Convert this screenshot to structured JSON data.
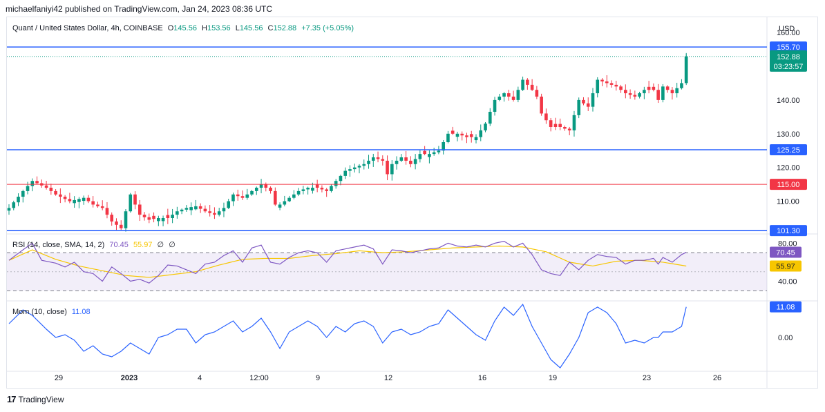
{
  "publisher": "michaelfaniyi42 published on TradingView.com, Jan 24, 2023 08:36 UTC",
  "brand": {
    "logo": "17",
    "name": "TradingView"
  },
  "header": {
    "symbol": "Quant / United States Dollar, 4h, COINBASE",
    "open_label": "O",
    "open": "145.56",
    "high_label": "H",
    "high": "153.56",
    "low_label": "L",
    "low": "145.56",
    "close_label": "C",
    "close": "152.88",
    "change": "+7.35 (+5.05%)"
  },
  "colors": {
    "up": "#089981",
    "down": "#f23645",
    "blue_line": "#2962ff",
    "red_line": "#f23645",
    "rsi": "#7e57c2",
    "rsi_sma": "#f7c600",
    "mom": "#2962ff",
    "price_tag": "#089981"
  },
  "chart_data": [
    {
      "type": "candlestick",
      "currency": "USD",
      "ylim": [
        100.5,
        163.5
      ],
      "y_ticks": [
        "160.00",
        "140.00",
        "130.00",
        "120.00",
        "110.00"
      ],
      "x_ticks": [
        "29",
        "2023",
        "4",
        "12:00",
        "9",
        "12",
        "16",
        "19",
        "23",
        "26"
      ],
      "horizontal_lines": [
        {
          "value": 155.7,
          "label": "155.70",
          "color": "#2962ff"
        },
        {
          "value": 125.25,
          "label": "125.25",
          "color": "#2962ff"
        },
        {
          "value": 115.0,
          "label": "115.00",
          "color": "#f23645"
        },
        {
          "value": 101.3,
          "label": "101.30",
          "color": "#2962ff"
        }
      ],
      "last_price": {
        "value": 152.88,
        "label": "152.88",
        "countdown": "03:23:57"
      },
      "close_anchors": [
        [
          0,
          108
        ],
        [
          3,
          113
        ],
        [
          5,
          116
        ],
        [
          8,
          114
        ],
        [
          10,
          112
        ],
        [
          13,
          110
        ],
        [
          16,
          111
        ],
        [
          18,
          109
        ],
        [
          20,
          108
        ],
        [
          22,
          104
        ],
        [
          24,
          102
        ],
        [
          26,
          112
        ],
        [
          28,
          106
        ],
        [
          30,
          104.5
        ],
        [
          32,
          105
        ],
        [
          34,
          105
        ],
        [
          36,
          107
        ],
        [
          38,
          108
        ],
        [
          40,
          108.5
        ],
        [
          42,
          107
        ],
        [
          44,
          106
        ],
        [
          46,
          108
        ],
        [
          48,
          112
        ],
        [
          50,
          111
        ],
        [
          52,
          113
        ],
        [
          54,
          115
        ],
        [
          56,
          113
        ],
        [
          57,
          109
        ],
        [
          58,
          109
        ],
        [
          60,
          111
        ],
        [
          62,
          113
        ],
        [
          64,
          114
        ],
        [
          66,
          114
        ],
        [
          68,
          113
        ],
        [
          70,
          116
        ],
        [
          72,
          119
        ],
        [
          74,
          120
        ],
        [
          76,
          121
        ],
        [
          78,
          123
        ],
        [
          80,
          122
        ],
        [
          81,
          118
        ],
        [
          82,
          121
        ],
        [
          84,
          123
        ],
        [
          86,
          121
        ],
        [
          88,
          124
        ],
        [
          90,
          124
        ],
        [
          92,
          125
        ],
        [
          94,
          130
        ],
        [
          96,
          130
        ],
        [
          98,
          129
        ],
        [
          100,
          129
        ],
        [
          102,
          133
        ],
        [
          104,
          140
        ],
        [
          106,
          142
        ],
        [
          108,
          140
        ],
        [
          110,
          146
        ],
        [
          112,
          143
        ],
        [
          113,
          141
        ],
        [
          114,
          136
        ],
        [
          116,
          132
        ],
        [
          118,
          132
        ],
        [
          120,
          131
        ],
        [
          122,
          140
        ],
        [
          124,
          138
        ],
        [
          126,
          146
        ],
        [
          128,
          145
        ],
        [
          130,
          144
        ],
        [
          132,
          142
        ],
        [
          134,
          141
        ],
        [
          136,
          143
        ],
        [
          138,
          143
        ],
        [
          139,
          140
        ],
        [
          140,
          144
        ],
        [
          142,
          142
        ],
        [
          144,
          145
        ],
        [
          145,
          152.88
        ]
      ],
      "total_candles": 146
    },
    {
      "type": "line",
      "name": "RSI",
      "legend": "RSI (14, close, SMA, 14, 2)",
      "legend_values": [
        "70.45",
        "55.97",
        "∅",
        "∅"
      ],
      "ylim": [
        20,
        89
      ],
      "y_ticks": [
        "80.00",
        "40.00"
      ],
      "levels": [
        70,
        50,
        30
      ],
      "rsi_anchors": [
        [
          0,
          62
        ],
        [
          3,
          73
        ],
        [
          5,
          80
        ],
        [
          7,
          62
        ],
        [
          10,
          59
        ],
        [
          12,
          55
        ],
        [
          14,
          60
        ],
        [
          16,
          50
        ],
        [
          18,
          48
        ],
        [
          20,
          40
        ],
        [
          22,
          55
        ],
        [
          24,
          48
        ],
        [
          26,
          40
        ],
        [
          28,
          42
        ],
        [
          30,
          38
        ],
        [
          32,
          46
        ],
        [
          34,
          57
        ],
        [
          36,
          56
        ],
        [
          38,
          52
        ],
        [
          40,
          48
        ],
        [
          42,
          58
        ],
        [
          44,
          60
        ],
        [
          46,
          67
        ],
        [
          48,
          72
        ],
        [
          50,
          60
        ],
        [
          52,
          75
        ],
        [
          54,
          78
        ],
        [
          56,
          60
        ],
        [
          58,
          58
        ],
        [
          60,
          65
        ],
        [
          62,
          70
        ],
        [
          64,
          72
        ],
        [
          66,
          70
        ],
        [
          68,
          60
        ],
        [
          70,
          72
        ],
        [
          72,
          74
        ],
        [
          74,
          76
        ],
        [
          76,
          78
        ],
        [
          78,
          74
        ],
        [
          80,
          58
        ],
        [
          82,
          73
        ],
        [
          84,
          72
        ],
        [
          86,
          70
        ],
        [
          88,
          72
        ],
        [
          90,
          74
        ],
        [
          92,
          75
        ],
        [
          94,
          80
        ],
        [
          96,
          77
        ],
        [
          98,
          76
        ],
        [
          100,
          78
        ],
        [
          102,
          76
        ],
        [
          104,
          80
        ],
        [
          106,
          82
        ],
        [
          108,
          76
        ],
        [
          110,
          80
        ],
        [
          112,
          68
        ],
        [
          114,
          52
        ],
        [
          116,
          48
        ],
        [
          118,
          46
        ],
        [
          120,
          60
        ],
        [
          122,
          52
        ],
        [
          124,
          62
        ],
        [
          126,
          68
        ],
        [
          128,
          66
        ],
        [
          130,
          65
        ],
        [
          132,
          58
        ],
        [
          134,
          62
        ],
        [
          136,
          62
        ],
        [
          138,
          64
        ],
        [
          139,
          58
        ],
        [
          140,
          65
        ],
        [
          142,
          60
        ],
        [
          144,
          68
        ],
        [
          145,
          70.45
        ]
      ],
      "sma_anchors": [
        [
          0,
          62
        ],
        [
          5,
          73
        ],
        [
          10,
          63
        ],
        [
          15,
          56
        ],
        [
          20,
          51
        ],
        [
          25,
          46
        ],
        [
          30,
          44
        ],
        [
          35,
          47
        ],
        [
          40,
          50
        ],
        [
          45,
          57
        ],
        [
          50,
          63
        ],
        [
          55,
          64
        ],
        [
          60,
          64
        ],
        [
          65,
          67
        ],
        [
          70,
          69
        ],
        [
          75,
          72
        ],
        [
          80,
          70
        ],
        [
          85,
          71
        ],
        [
          90,
          73
        ],
        [
          95,
          75
        ],
        [
          100,
          76
        ],
        [
          105,
          77
        ],
        [
          110,
          76
        ],
        [
          115,
          71
        ],
        [
          120,
          60
        ],
        [
          125,
          56
        ],
        [
          130,
          61
        ],
        [
          135,
          62
        ],
        [
          140,
          60
        ],
        [
          145,
          55.97
        ]
      ],
      "rsi_value": "70.45",
      "sma_value": "55.97"
    },
    {
      "type": "line",
      "name": "Mom",
      "legend": "Mom (10, close)",
      "legend_value": "11.08",
      "ylim": [
        -12,
        13
      ],
      "y_ticks": [
        "0.00"
      ],
      "mom_anchors": [
        [
          0,
          5
        ],
        [
          3,
          10
        ],
        [
          5,
          8
        ],
        [
          8,
          3
        ],
        [
          10,
          0
        ],
        [
          12,
          1
        ],
        [
          14,
          -1
        ],
        [
          16,
          -5
        ],
        [
          18,
          -3
        ],
        [
          20,
          -6
        ],
        [
          22,
          -7
        ],
        [
          24,
          -5
        ],
        [
          26,
          -2
        ],
        [
          28,
          -4
        ],
        [
          30,
          -6
        ],
        [
          32,
          0
        ],
        [
          34,
          1
        ],
        [
          36,
          3
        ],
        [
          38,
          3
        ],
        [
          40,
          -2
        ],
        [
          42,
          1
        ],
        [
          44,
          2
        ],
        [
          46,
          4
        ],
        [
          48,
          6
        ],
        [
          50,
          2
        ],
        [
          52,
          4
        ],
        [
          54,
          7
        ],
        [
          56,
          2
        ],
        [
          58,
          -4
        ],
        [
          60,
          2
        ],
        [
          62,
          4
        ],
        [
          64,
          6
        ],
        [
          66,
          4
        ],
        [
          68,
          0
        ],
        [
          70,
          4
        ],
        [
          72,
          2
        ],
        [
          74,
          5
        ],
        [
          76,
          6
        ],
        [
          78,
          4
        ],
        [
          80,
          -2
        ],
        [
          82,
          2
        ],
        [
          84,
          3
        ],
        [
          86,
          1
        ],
        [
          88,
          2
        ],
        [
          90,
          4
        ],
        [
          92,
          5
        ],
        [
          94,
          10
        ],
        [
          96,
          7
        ],
        [
          98,
          4
        ],
        [
          100,
          1
        ],
        [
          102,
          -1
        ],
        [
          104,
          6
        ],
        [
          106,
          11
        ],
        [
          108,
          8
        ],
        [
          110,
          12
        ],
        [
          112,
          4
        ],
        [
          114,
          -2
        ],
        [
          116,
          -8
        ],
        [
          118,
          -11
        ],
        [
          120,
          -6
        ],
        [
          122,
          0
        ],
        [
          124,
          9
        ],
        [
          126,
          11
        ],
        [
          128,
          9
        ],
        [
          130,
          5
        ],
        [
          132,
          -2
        ],
        [
          134,
          -1
        ],
        [
          136,
          -2
        ],
        [
          138,
          0
        ],
        [
          139,
          0
        ],
        [
          140,
          2
        ],
        [
          142,
          2
        ],
        [
          144,
          4
        ],
        [
          145,
          11.08
        ]
      ],
      "mom_value": "11.08"
    }
  ]
}
